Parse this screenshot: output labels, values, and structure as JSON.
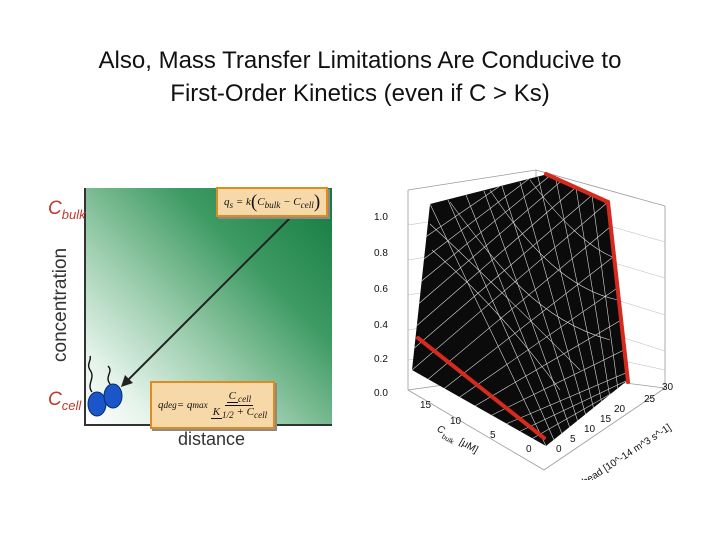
{
  "title": {
    "line1": "Also, Mass Transfer Limitations Are Conducive to",
    "line2": "First-Order Kinetics (even if C > Ks)"
  },
  "left_diagram": {
    "y_axis_label": "concentration",
    "x_axis_label": "distance",
    "c_bulk": {
      "main": "C",
      "sub": "bulk"
    },
    "c_cell": {
      "main": "C",
      "sub": "cell"
    },
    "eq_top": {
      "lhs": "q",
      "lhs_sub": "s",
      "eq": " = k",
      "c1": "C",
      "c1_sub": "bulk",
      "minus": " − ",
      "c2": "C",
      "c2_sub": "cell"
    },
    "eq_bottom": {
      "lhs": "q",
      "lhs_sub": "deg",
      "eq": " = q",
      "q_sub": "max",
      "num": "C",
      "num_sub": "cell",
      "den_k": "K",
      "den_k_sub": "1/2",
      "den_plus": " + C",
      "den_c_sub": "cell"
    },
    "colors": {
      "gradient_dark": "#127a3e",
      "accent": "#c0392b",
      "box_fill": "#f7d9a9",
      "box_border": "#e08b20"
    }
  },
  "surface_plot": {
    "z_ticks": [
      "1.0",
      "0.8",
      "0.6",
      "0.4",
      "0.2",
      "0.0"
    ],
    "left_axis_ticks": [
      "15",
      "10",
      "5",
      "0"
    ],
    "left_axis_label_main": "C",
    "left_axis_label_sub": "bulk",
    "left_axis_label_unit": "[μM]",
    "right_axis_ticks": [
      "0",
      "5",
      "10",
      "15",
      "20",
      "25",
      "30"
    ],
    "right_axis_label": "k bead [10^-14 m^3 s^-1]",
    "colors": {
      "surface": "#0b0b0b",
      "mesh": "#d8d8d8",
      "highlight": "#d62a1e"
    }
  }
}
